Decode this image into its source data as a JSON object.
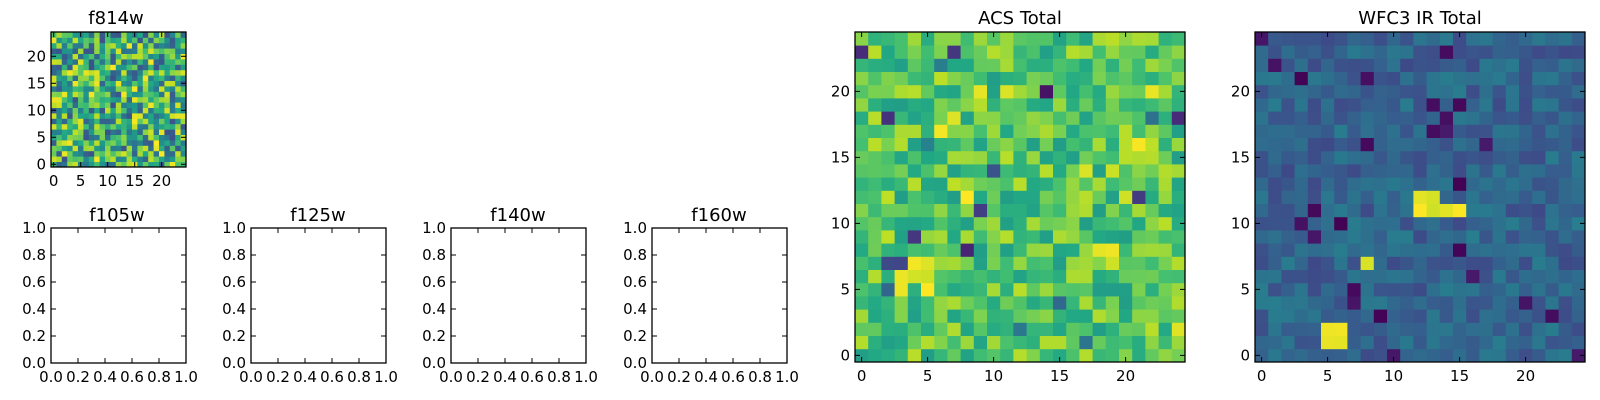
{
  "chart_data": [
    {
      "id": "f814w",
      "type": "heatmap",
      "title": "f814w",
      "xlabel": "",
      "ylabel": "",
      "xlim": [
        -0.5,
        24.5
      ],
      "ylim": [
        -0.5,
        24.5
      ],
      "grid_shape": [
        25,
        25
      ],
      "xticks": [
        0,
        5,
        10,
        15,
        20
      ],
      "yticks": [
        0,
        5,
        10,
        15,
        20
      ],
      "colormap": "viridis",
      "value_range": [
        0,
        1
      ],
      "seed": 814,
      "distribution": "broad"
    },
    {
      "id": "f105w",
      "type": "empty",
      "title": "f105w",
      "xlim": [
        0,
        1
      ],
      "ylim": [
        0,
        1
      ],
      "xticks": [
        "0.0",
        "0.2",
        "0.4",
        "0.6",
        "0.8",
        "1.0"
      ],
      "yticks": [
        "0.0",
        "0.2",
        "0.4",
        "0.6",
        "0.8",
        "1.0"
      ]
    },
    {
      "id": "f125w",
      "type": "empty",
      "title": "f125w",
      "xlim": [
        0,
        1
      ],
      "ylim": [
        0,
        1
      ],
      "xticks": [
        "0.0",
        "0.2",
        "0.4",
        "0.6",
        "0.8",
        "1.0"
      ],
      "yticks": [
        "0.0",
        "0.2",
        "0.4",
        "0.6",
        "0.8",
        "1.0"
      ]
    },
    {
      "id": "f140w",
      "type": "empty",
      "title": "f140w",
      "xlim": [
        0,
        1
      ],
      "ylim": [
        0,
        1
      ],
      "xticks": [
        "0.0",
        "0.2",
        "0.4",
        "0.6",
        "0.8",
        "1.0"
      ],
      "yticks": [
        "0.0",
        "0.2",
        "0.4",
        "0.6",
        "0.8",
        "1.0"
      ]
    },
    {
      "id": "f160w",
      "type": "empty",
      "title": "f160w",
      "xlim": [
        0,
        1
      ],
      "ylim": [
        0,
        1
      ],
      "xticks": [
        "0.0",
        "0.2",
        "0.4",
        "0.6",
        "0.8",
        "1.0"
      ],
      "yticks": [
        "0.0",
        "0.2",
        "0.4",
        "0.6",
        "0.8",
        "1.0"
      ]
    },
    {
      "id": "acs-total",
      "type": "heatmap",
      "title": "ACS Total",
      "xlim": [
        -0.5,
        24.5
      ],
      "ylim": [
        -0.5,
        24.5
      ],
      "grid_shape": [
        25,
        25
      ],
      "xticks": [
        0,
        5,
        10,
        15,
        20
      ],
      "yticks": [
        0,
        5,
        10,
        15,
        20
      ],
      "colormap": "viridis",
      "value_range": [
        0,
        1
      ],
      "seed": 2016,
      "distribution": "high",
      "low_cells": [
        [
          0,
          23
        ],
        [
          2,
          18
        ],
        [
          2,
          7
        ],
        [
          2,
          5
        ],
        [
          6,
          22
        ],
        [
          7,
          23
        ],
        [
          3,
          7
        ],
        [
          8,
          8
        ],
        [
          9,
          11
        ],
        [
          12,
          2
        ],
        [
          14,
          20
        ],
        [
          10,
          14
        ],
        [
          4,
          9
        ],
        [
          5,
          16
        ],
        [
          15,
          4
        ],
        [
          17,
          1
        ],
        [
          22,
          18
        ],
        [
          24,
          18
        ],
        [
          21,
          12
        ]
      ],
      "high_cells": [
        [
          5,
          6
        ],
        [
          5,
          7
        ],
        [
          4,
          6
        ],
        [
          4,
          7
        ],
        [
          5,
          5
        ],
        [
          3,
          6
        ],
        [
          3,
          5
        ],
        [
          19,
          7
        ],
        [
          19,
          8
        ],
        [
          18,
          8
        ],
        [
          6,
          17
        ],
        [
          7,
          18
        ],
        [
          8,
          12
        ],
        [
          9,
          20
        ],
        [
          11,
          20
        ],
        [
          17,
          14
        ],
        [
          19,
          14
        ],
        [
          24,
          2
        ],
        [
          22,
          20
        ],
        [
          21,
          16
        ],
        [
          20,
          12
        ]
      ]
    },
    {
      "id": "wfc3-ir-total",
      "type": "heatmap",
      "title": "WFC3 IR Total",
      "xlim": [
        -0.5,
        24.5
      ],
      "ylim": [
        -0.5,
        24.5
      ],
      "grid_shape": [
        25,
        25
      ],
      "xticks": [
        0,
        5,
        10,
        15,
        20
      ],
      "yticks": [
        0,
        5,
        10,
        15,
        20
      ],
      "colormap": "viridis",
      "value_range": [
        0,
        1
      ],
      "seed": 3160,
      "distribution": "low",
      "low_cells": [
        [
          24,
          0
        ],
        [
          22,
          3
        ],
        [
          10,
          0
        ],
        [
          9,
          3
        ],
        [
          7,
          4
        ],
        [
          7,
          5
        ],
        [
          6,
          10
        ],
        [
          15,
          8
        ],
        [
          15,
          13
        ],
        [
          14,
          17
        ],
        [
          14,
          18
        ],
        [
          13,
          17
        ],
        [
          13,
          19
        ],
        [
          15,
          19
        ],
        [
          14,
          23
        ],
        [
          8,
          21
        ],
        [
          8,
          16
        ],
        [
          17,
          16
        ],
        [
          4,
          9
        ],
        [
          4,
          11
        ],
        [
          3,
          21
        ],
        [
          20,
          4
        ],
        [
          16,
          6
        ],
        [
          0,
          24
        ],
        [
          3,
          10
        ],
        [
          1,
          22
        ]
      ],
      "high_cells": [
        [
          5,
          1
        ],
        [
          6,
          1
        ],
        [
          5,
          2
        ],
        [
          6,
          2
        ],
        [
          12,
          11
        ],
        [
          13,
          11
        ],
        [
          12,
          12
        ],
        [
          13,
          12
        ],
        [
          8,
          7
        ],
        [
          14,
          11
        ],
        [
          15,
          11
        ]
      ]
    }
  ]
}
